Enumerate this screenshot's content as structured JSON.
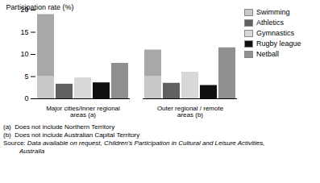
{
  "chart_data": {
    "type": "bar",
    "categories": [
      "Major cities/Inner regional areas (a)",
      "Outer regional / remote areas (b)"
    ],
    "series": [
      {
        "name": "Swimming",
        "colors": [
          "#c8c8c8",
          "#a8a8a8"
        ],
        "values": [
          [
            5.0,
            14.0
          ],
          [
            5.0,
            6.0
          ]
        ],
        "stacked": true
      },
      {
        "name": "Athletics",
        "color": "#606060",
        "values": [
          3.3,
          3.5
        ]
      },
      {
        "name": "Gymnastics",
        "color": "#d8d8d8",
        "values": [
          4.7,
          6.0
        ]
      },
      {
        "name": "Rugby league",
        "color": "#101010",
        "values": [
          3.6,
          3.0
        ]
      },
      {
        "name": "Netball",
        "color": "#909090",
        "values": [
          8.0,
          11.5
        ]
      }
    ],
    "ylabel": "Participation rate (%)",
    "ylim": [
      0,
      20
    ],
    "yticks": [
      0,
      5,
      10,
      15,
      20
    ],
    "grid": false,
    "legend": "upper right",
    "annotations": [
      "(a)  Does not include Northern Territory",
      "(b)  Does not include Australian Capital Territory"
    ],
    "source_label": "Source: ",
    "source_text": "Data available on request, Children's Participation in Cultural and Leisure Activities,\n         Australia"
  }
}
